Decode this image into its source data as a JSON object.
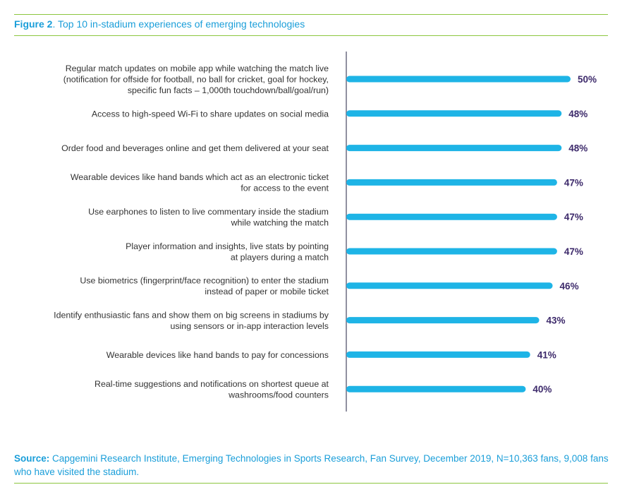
{
  "figure": {
    "label": "Figure 2",
    "title": ". Top 10 in-stadium experiences of emerging technologies"
  },
  "chart_data": {
    "type": "bar",
    "orientation": "horizontal",
    "categories": [
      [
        "Regular match updates on mobile app while watching the match live",
        "(notification for offside for football, no ball for cricket, goal for hockey,",
        "specific fun facts – 1,000th touchdown/ball/goal/run)"
      ],
      [
        "Access to high-speed Wi-Fi to share updates on social media"
      ],
      [
        "Order food and beverages online and get them delivered at your seat"
      ],
      [
        "Wearable devices like hand bands which act as an electronic ticket",
        "for access to the event"
      ],
      [
        "Use earphones to listen to live commentary inside the stadium",
        "while watching the match"
      ],
      [
        "Player information and insights, live stats by pointing",
        "at players during a match"
      ],
      [
        "Use biometrics (fingerprint/face recognition) to enter the stadium",
        "instead of paper or mobile ticket"
      ],
      [
        "Identify enthusiastic fans and show them on big screens in stadiums by",
        "using sensors or in-app interaction levels"
      ],
      [
        "Wearable devices like hand bands to pay for concessions"
      ],
      [
        "Real-time suggestions and notifications on shortest queue at",
        "washrooms/food counters"
      ]
    ],
    "values": [
      50,
      48,
      48,
      47,
      47,
      47,
      46,
      43,
      41,
      40
    ],
    "value_labels": [
      "50%",
      "48%",
      "48%",
      "47%",
      "47%",
      "47%",
      "46%",
      "43%",
      "41%",
      "40%"
    ],
    "xlim": [
      0,
      50
    ],
    "bar_color": "#1eb4e6",
    "value_label_color": "#3d2a6b",
    "axis_color": "#6b6b80"
  },
  "source": {
    "label": "Source:",
    "text": " Capgemini Research Institute, Emerging Technologies in Sports Research, Fan Survey, December 2019, N=10,363 fans, 9,008 fans who have visited the stadium."
  },
  "colors": {
    "accent": "#1a9ed9",
    "rule": "#8cc63f"
  }
}
